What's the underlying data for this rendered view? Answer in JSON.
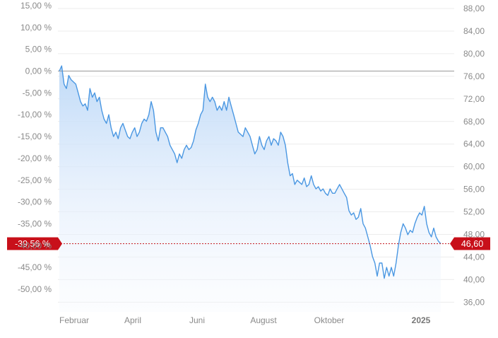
{
  "chart_data": {
    "type": "area",
    "left_axis": {
      "ticks": [
        "15,00 %",
        "10,00 %",
        "5,00 %",
        "0,00 %",
        "-5,00 %",
        "-10,00 %",
        "-15,00 %",
        "-20,00 %",
        "-25,00 %",
        "-30,00 %",
        "-35,00 %",
        "-40,00 %",
        "-45,00 %",
        "-50,00 %"
      ],
      "tick_values": [
        15,
        10,
        5,
        0,
        -5,
        -10,
        -15,
        -20,
        -25,
        -30,
        -35,
        -40,
        -45,
        -50
      ],
      "unit": "%"
    },
    "right_axis": {
      "ticks": [
        "88,00",
        "84,00",
        "80,00",
        "76,00",
        "72,00",
        "68,00",
        "64,00",
        "60,00",
        "56,00",
        "52,00",
        "48,00",
        "44,00",
        "40,00",
        "36,00"
      ],
      "tick_values": [
        88,
        84,
        80,
        76,
        72,
        68,
        64,
        60,
        56,
        52,
        48,
        44,
        40,
        36
      ]
    },
    "x_axis": {
      "labels": [
        {
          "text": "Februar",
          "bold": false
        },
        {
          "text": "April",
          "bold": false
        },
        {
          "text": "Juni",
          "bold": false
        },
        {
          "text": "August",
          "bold": false
        },
        {
          "text": "Oktober",
          "bold": false
        },
        {
          "text": "2025",
          "bold": true
        }
      ]
    },
    "baseline_value": 0,
    "current": {
      "percent_label": "-39,56 %",
      "price_label": "46,60",
      "percent": -39.56,
      "price": 46.6
    },
    "series": [
      {
        "values": [
          0,
          1.2,
          -3,
          -4,
          -1,
          -2,
          -2.5,
          -3,
          -5,
          -7,
          -8,
          -7.5,
          -9,
          -4,
          -6,
          -5,
          -7,
          -6,
          -9,
          -11,
          -12,
          -10,
          -13,
          -15,
          -14,
          -15.5,
          -13,
          -12,
          -13.5,
          -15,
          -15.5,
          -14,
          -13,
          -15,
          -14,
          -12,
          -11,
          -11.5,
          -10,
          -7,
          -9,
          -14,
          -16,
          -13,
          -13,
          -14,
          -15,
          -17,
          -18,
          -19,
          -21,
          -19,
          -20,
          -18,
          -17,
          -18,
          -17.5,
          -16,
          -13.5,
          -12,
          -10,
          -9,
          -3,
          -6,
          -7,
          -6,
          -7,
          -9,
          -8,
          -9,
          -7,
          -9,
          -6,
          -8,
          -10,
          -12,
          -14,
          -14.5,
          -15,
          -13,
          -14,
          -15,
          -17,
          -19,
          -18,
          -15,
          -17,
          -18,
          -16,
          -15,
          -17,
          -15.5,
          -16,
          -17,
          -14,
          -15,
          -17,
          -21,
          -24,
          -23.5,
          -26,
          -25,
          -25.5,
          -26,
          -24.5,
          -26.5,
          -26,
          -24,
          -26,
          -27,
          -26.5,
          -27.5,
          -27,
          -28,
          -28.5,
          -27,
          -28,
          -28,
          -27,
          -26,
          -27,
          -28,
          -29,
          -32,
          -33,
          -32.5,
          -34,
          -33.5,
          -31.5,
          -35,
          -36,
          -38,
          -40,
          -42.5,
          -44,
          -47,
          -44,
          -44,
          -47.5,
          -45,
          -47,
          -45,
          -47,
          -44,
          -40,
          -37,
          -35,
          -36,
          -37.5,
          -36.5,
          -37,
          -35,
          -33.5,
          -32.5,
          -33,
          -31,
          -35,
          -37,
          -38,
          -36,
          -38,
          -39,
          -39.56
        ]
      }
    ]
  }
}
